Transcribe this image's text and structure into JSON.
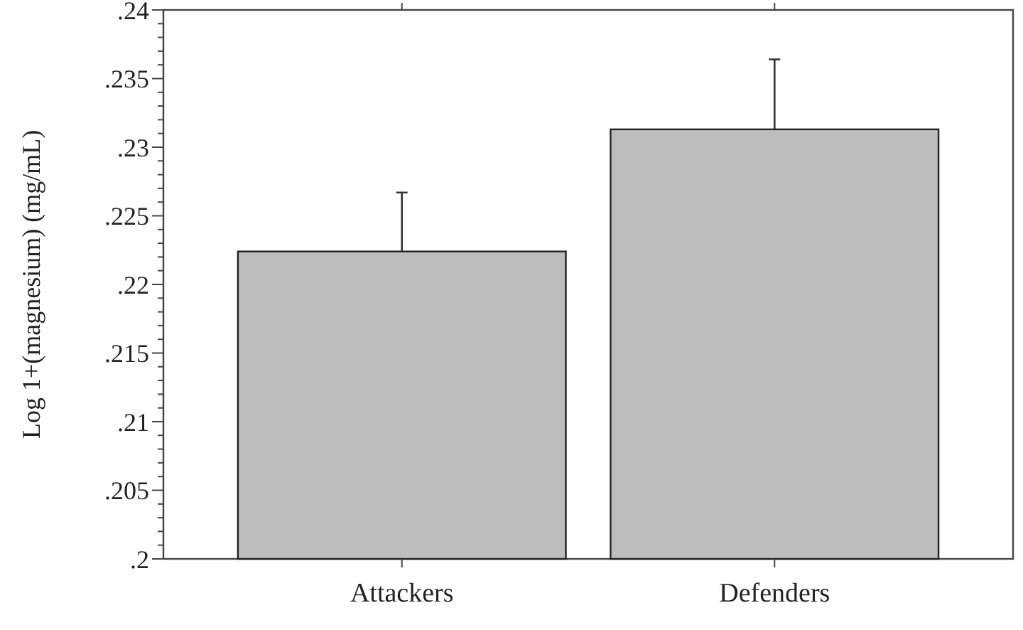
{
  "chart_data": {
    "type": "bar",
    "ylabel": "Log 1+(magnesium) (mg/mL)",
    "categories": [
      "Attackers",
      "Defenders"
    ],
    "values": [
      0.2224,
      0.2313
    ],
    "errors": [
      0.0043,
      0.0051
    ],
    "color": "#bdbdbd",
    "ylim": [
      0.2,
      0.24
    ],
    "yticks": [
      {
        "value": 0.2,
        "label": ".2"
      },
      {
        "value": 0.201,
        "label": null
      },
      {
        "value": 0.202,
        "label": null
      },
      {
        "value": 0.203,
        "label": null
      },
      {
        "value": 0.204,
        "label": null
      },
      {
        "value": 0.205,
        "label": ".205"
      },
      {
        "value": 0.206,
        "label": null
      },
      {
        "value": 0.207,
        "label": null
      },
      {
        "value": 0.208,
        "label": null
      },
      {
        "value": 0.209,
        "label": null
      },
      {
        "value": 0.21,
        "label": ".21"
      },
      {
        "value": 0.211,
        "label": null
      },
      {
        "value": 0.212,
        "label": null
      },
      {
        "value": 0.213,
        "label": null
      },
      {
        "value": 0.214,
        "label": null
      },
      {
        "value": 0.215,
        "label": ".215"
      },
      {
        "value": 0.216,
        "label": null
      },
      {
        "value": 0.217,
        "label": null
      },
      {
        "value": 0.218,
        "label": null
      },
      {
        "value": 0.219,
        "label": null
      },
      {
        "value": 0.22,
        "label": ".22"
      },
      {
        "value": 0.221,
        "label": null
      },
      {
        "value": 0.222,
        "label": null
      },
      {
        "value": 0.223,
        "label": null
      },
      {
        "value": 0.224,
        "label": null
      },
      {
        "value": 0.225,
        "label": ".225"
      },
      {
        "value": 0.226,
        "label": null
      },
      {
        "value": 0.227,
        "label": null
      },
      {
        "value": 0.228,
        "label": null
      },
      {
        "value": 0.229,
        "label": null
      },
      {
        "value": 0.23,
        "label": ".23"
      },
      {
        "value": 0.231,
        "label": null
      },
      {
        "value": 0.232,
        "label": null
      },
      {
        "value": 0.233,
        "label": null
      },
      {
        "value": 0.234,
        "label": null
      },
      {
        "value": 0.235,
        "label": ".235"
      },
      {
        "value": 0.236,
        "label": null
      },
      {
        "value": 0.237,
        "label": null
      },
      {
        "value": 0.238,
        "label": null
      },
      {
        "value": 0.239,
        "label": null
      },
      {
        "value": 0.24,
        "label": ".24"
      }
    ]
  }
}
